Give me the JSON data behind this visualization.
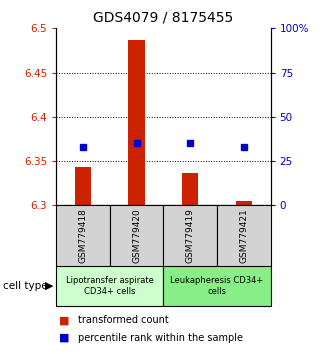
{
  "title": "GDS4079 / 8175455",
  "samples": [
    "GSM779418",
    "GSM779420",
    "GSM779419",
    "GSM779421"
  ],
  "transformed_counts": [
    6.343,
    6.487,
    6.337,
    6.305
  ],
  "percentile_ranks": [
    33,
    35,
    35,
    33
  ],
  "ylim_left": [
    6.3,
    6.5
  ],
  "yticks_left": [
    6.3,
    6.35,
    6.4,
    6.45,
    6.5
  ],
  "yticks_right": [
    0,
    25,
    50,
    75,
    100
  ],
  "bar_bottom": 6.3,
  "bar_color": "#cc2200",
  "dot_color": "#0000cc",
  "cell_types": [
    {
      "label": "Lipotransfer aspirate\nCD34+ cells",
      "samples": [
        0,
        1
      ],
      "color": "#ccffcc"
    },
    {
      "label": "Leukapheresis CD34+\ncells",
      "samples": [
        2,
        3
      ],
      "color": "#88ee88"
    }
  ],
  "cell_type_label": "cell type",
  "legend_items": [
    {
      "color": "#cc2200",
      "label": "transformed count"
    },
    {
      "color": "#0000cc",
      "label": "percentile rank within the sample"
    }
  ],
  "grid_color": "black",
  "grid_style": "dotted",
  "sample_box_color": "#d3d3d3",
  "title_fontsize": 10,
  "tick_fontsize": 7.5,
  "legend_fontsize": 7,
  "sample_fontsize": 6.5,
  "cell_type_fontsize": 6
}
